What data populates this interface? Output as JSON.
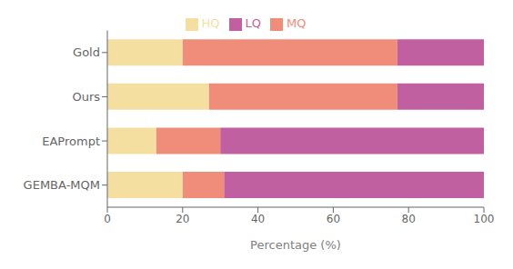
{
  "chart_data": {
    "type": "bar",
    "orientation": "horizontal",
    "stacked": true,
    "categories": [
      "Gold",
      "Ours",
      "EAPrompt",
      "GEMBA-MQM"
    ],
    "series": [
      {
        "name": "HQ",
        "color": "#F5DFA0",
        "values": [
          20,
          27,
          13,
          20
        ]
      },
      {
        "name": "MQ",
        "color": "#F08C7A",
        "values": [
          57,
          50,
          17,
          11
        ]
      },
      {
        "name": "LQ",
        "color": "#C060A0",
        "values": [
          23,
          23,
          70,
          69
        ]
      }
    ],
    "xlabel": "Percentage (%)",
    "xlim": [
      0,
      100
    ],
    "xticks": [
      0,
      20,
      40,
      60,
      80,
      100
    ],
    "grid": false,
    "legend": "top"
  }
}
